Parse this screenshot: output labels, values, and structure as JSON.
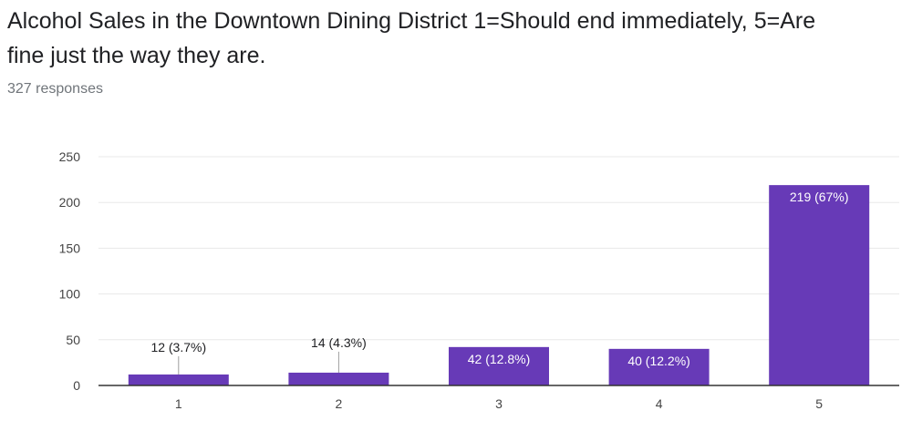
{
  "title": "Alcohol Sales in the Downtown Dining District 1=Should end immediately, 5=Are fine just the way they are.",
  "response_count": "327 responses",
  "colors": {
    "bar": "#673ab7",
    "grid": "#e8e8e8",
    "axis": "#333333",
    "label_outside": "#202124",
    "label_inside": "#ffffff",
    "leader": "#9e9e9e"
  },
  "chart_data": {
    "type": "bar",
    "categories": [
      "1",
      "2",
      "3",
      "4",
      "5"
    ],
    "values": [
      12,
      14,
      42,
      40,
      219
    ],
    "data_labels": [
      "12 (3.7%)",
      "14 (4.3%)",
      "42 (12.8%)",
      "40 (12.2%)",
      "219 (67%)"
    ],
    "ylim": [
      0,
      250
    ],
    "yticks": [
      0,
      50,
      100,
      150,
      200,
      250
    ],
    "grid": true,
    "legend": "none",
    "xlabel": "",
    "ylabel": ""
  }
}
